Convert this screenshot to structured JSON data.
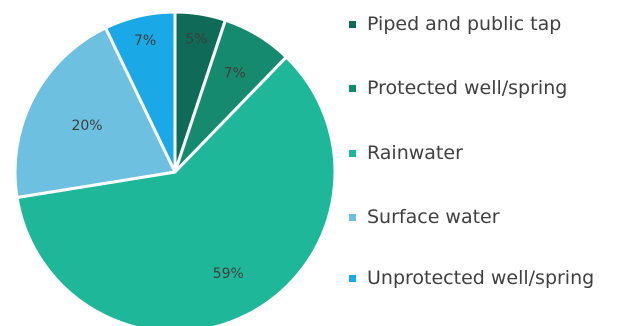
{
  "chart_data": {
    "type": "pie",
    "title": "",
    "categories": [
      "Piped and public tap",
      "Protected well/spring",
      "Rainwater",
      "Surface water",
      "Unprotected well/spring"
    ],
    "values": [
      5,
      7,
      59,
      20,
      7
    ],
    "data_labels": [
      "5%",
      "7%",
      "59%",
      "20%",
      "7%"
    ],
    "colors": [
      "#0f6b57",
      "#168a6e",
      "#1fb79a",
      "#6ec0e0",
      "#1aa8e6"
    ],
    "start_angle_deg": 0,
    "direction": "clockwise",
    "slice_edge_color": "#ffffff",
    "legend_position": "right"
  },
  "legend": {
    "items": [
      {
        "label": "Piped and public tap",
        "color": "#0f6b57"
      },
      {
        "label": "Protected well/spring",
        "color": "#168a6e"
      },
      {
        "label": "Rainwater",
        "color": "#1fb79a"
      },
      {
        "label": "Surface water",
        "color": "#6ec0e0"
      },
      {
        "label": "Unprotected well/spring",
        "color": "#1aa8e6"
      }
    ]
  }
}
